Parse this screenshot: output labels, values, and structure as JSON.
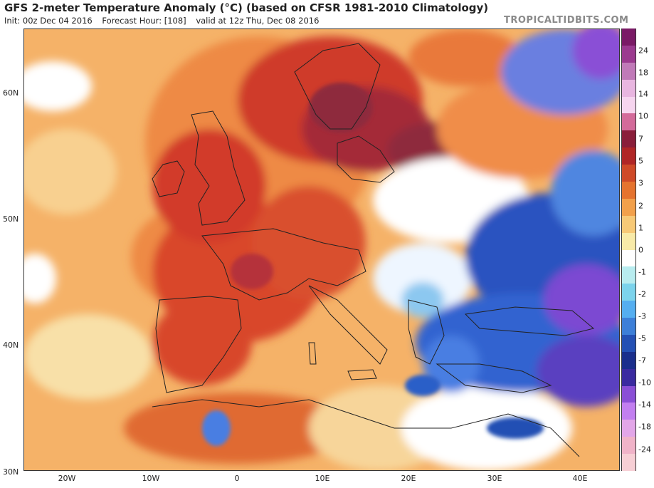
{
  "header": {
    "title": "GFS 2-meter Temperature Anomaly (°C) (based on CFSR 1981-2010 Climatology)",
    "init": "Init: 00z Dec 04 2016",
    "forecast_hour": "Forecast Hour: [108]",
    "valid": "valid at 12z Thu, Dec 08 2016",
    "brand": "TROPICALTIDBITS.COM"
  },
  "map": {
    "lat_labels": [
      "60N",
      "50N",
      "40N",
      "30N"
    ],
    "lon_labels": [
      "20W",
      "10W",
      "0",
      "10E",
      "20E",
      "30E",
      "40E"
    ]
  },
  "colorbar": {
    "labels": [
      "24",
      "18",
      "14",
      "10",
      "7",
      "5",
      "3",
      "2",
      "1",
      "0",
      "-1",
      "-2",
      "-3",
      "-5",
      "-7",
      "-10",
      "-14",
      "-18",
      "-24"
    ],
    "colors": [
      "#7a1a66",
      "#9b3a8f",
      "#c07ab8",
      "#e8b6e0",
      "#f6d5ef",
      "#d36a9a",
      "#8a1e3a",
      "#b02626",
      "#cf4a28",
      "#e5732f",
      "#f2a04b",
      "#f7c977",
      "#f8eaa8",
      "#ffffff",
      "#b8ecef",
      "#7cd3ec",
      "#55aef0",
      "#3d7fd8",
      "#2450b4",
      "#1a2e8c",
      "#3a2aa0",
      "#8a4fd6",
      "#c27ff0",
      "#e2a6e8",
      "#f0b3c8",
      "#f7cfd5"
    ]
  }
}
